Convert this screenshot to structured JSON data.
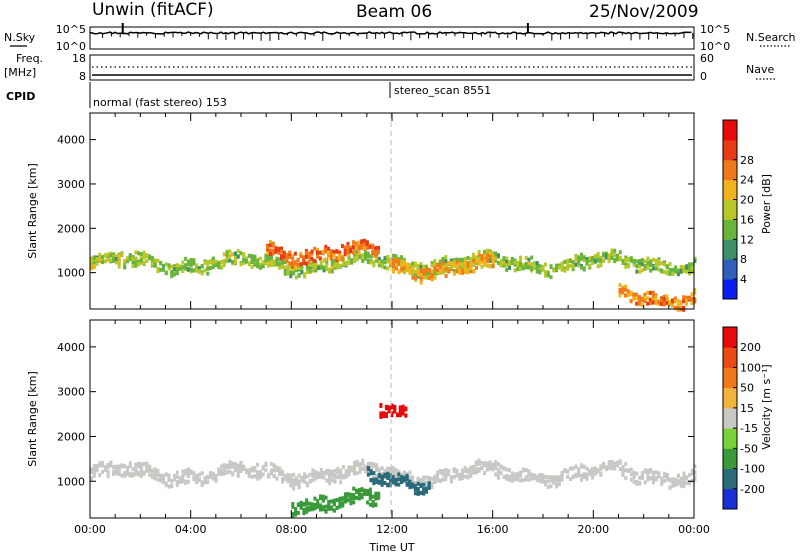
{
  "header": {
    "station": "Unwin (fitACF)",
    "beam": "Beam 06",
    "date": "25/Nov/2009"
  },
  "side_labels": {
    "nsky": "N.Sky",
    "freq": "Freq.",
    "freq_unit": "[MHz]",
    "cpid": "CPID",
    "nsearch": "N.Search",
    "nave": "Nave",
    "power_title": "Power [dB]",
    "velocity_title": "Velocity [m s⁻¹]"
  },
  "cpid_modes": [
    {
      "label": "normal (fast stereo) 153",
      "start": "00:00"
    },
    {
      "label": "stereo_scan 8551",
      "start": "12:00"
    }
  ],
  "chart_data": [
    {
      "type": "line",
      "name": "noise",
      "left_ticks": [
        "10^5",
        "10^0"
      ],
      "right_ticks": [
        "10^5",
        "10^0"
      ],
      "series": [
        {
          "name": "N.Sky"
        },
        {
          "name": "N.Search"
        }
      ]
    },
    {
      "type": "line",
      "name": "frequency",
      "left_ticks": [
        "18",
        "8"
      ],
      "right_ticks": [
        "60",
        "0"
      ],
      "ylim_left": [
        8,
        18
      ],
      "ylim_right": [
        0,
        60
      ],
      "series": [
        {
          "name": "Freq."
        },
        {
          "name": "Nave"
        }
      ]
    },
    {
      "type": "heatmap",
      "name": "power",
      "xlabel": "",
      "ylabel": "Slant Range [km]",
      "x_ticks": [
        "00:00",
        "04:00",
        "08:00",
        "12:00",
        "16:00",
        "20:00",
        "00:00"
      ],
      "y_ticks": [
        1000,
        2000,
        3000,
        4000
      ],
      "xlim": [
        "00:00",
        "24:00"
      ],
      "ylim": [
        180,
        4600
      ],
      "colorbar_title": "Power [dB]",
      "colorbar_ticks": [
        4,
        8,
        12,
        16,
        20,
        24,
        28
      ],
      "colorbar_colors": [
        "#0a1ef0",
        "#2f5fb8",
        "#3f8f6a",
        "#68b43c",
        "#b8c82a",
        "#f2b41e",
        "#f07a1a",
        "#e83a14",
        "#e80a0a"
      ],
      "bands": [
        {
          "start": 0,
          "end": 24,
          "range": 1250,
          "power": 14
        },
        {
          "start": 7,
          "end": 11.5,
          "range": 1500,
          "power": 24
        },
        {
          "start": 12,
          "end": 16,
          "range": 1150,
          "power": 20
        },
        {
          "start": 21,
          "end": 24,
          "range": 500,
          "power": 22
        }
      ]
    },
    {
      "type": "heatmap",
      "name": "velocity",
      "xlabel": "Time UT",
      "ylabel": "Slant Range [km]",
      "x_ticks": [
        "00:00",
        "04:00",
        "08:00",
        "12:00",
        "16:00",
        "20:00",
        "00:00"
      ],
      "y_ticks": [
        1000,
        2000,
        3000,
        4000
      ],
      "xlim": [
        "00:00",
        "24:00"
      ],
      "ylim": [
        180,
        4600
      ],
      "colorbar_title": "Velocity [m s⁻¹]",
      "colorbar_ticks": [
        200,
        100,
        50,
        15,
        -15,
        -50,
        -100,
        -200
      ],
      "colorbar_colors": [
        "#1a2fd8",
        "#2a6a7a",
        "#3a9a3a",
        "#7ad23a",
        "#c8c8c4",
        "#f2b43a",
        "#f07a1a",
        "#ea4a14",
        "#e80a0a"
      ],
      "bands": [
        {
          "start": 0,
          "end": 24,
          "range": 1200,
          "velocity": 0
        },
        {
          "start": 8,
          "end": 11.5,
          "range": 580,
          "velocity": -60
        },
        {
          "start": 11,
          "end": 13.5,
          "range": 1050,
          "velocity": -150
        },
        {
          "start": 11.5,
          "end": 12.5,
          "range": 2600,
          "velocity": 220
        }
      ]
    }
  ]
}
